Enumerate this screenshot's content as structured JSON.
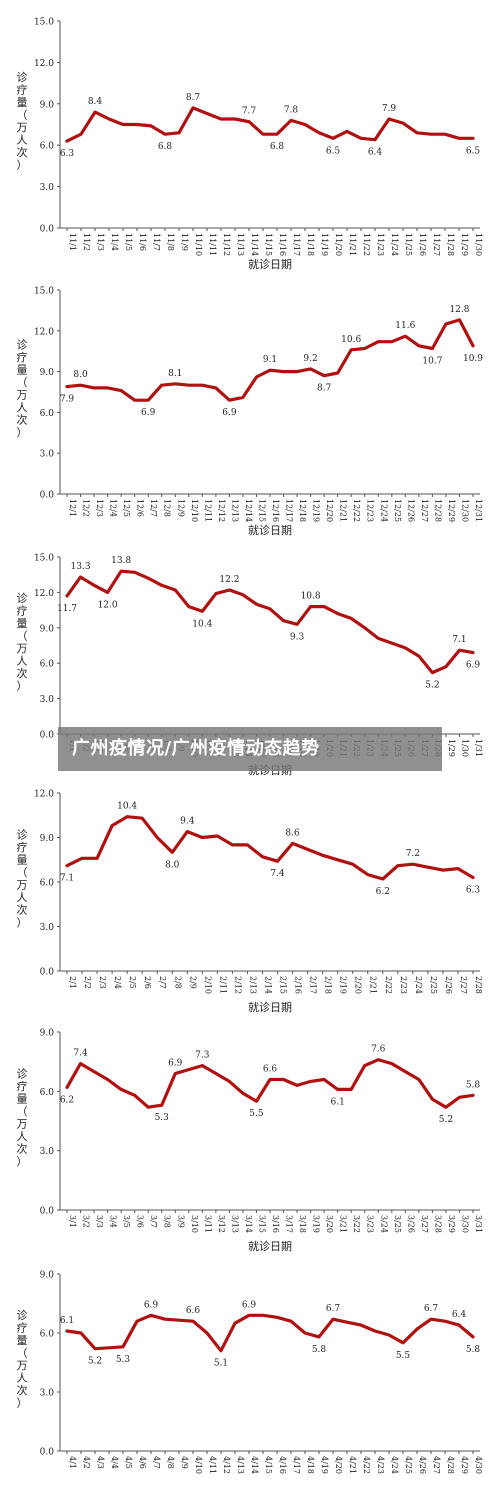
{
  "banner": {
    "title": "广州疫情况/广州疫情动态趋势"
  },
  "chart_data": [
    {
      "type": "line",
      "series_color": "#b01010",
      "xlabel": "就诊日期",
      "ylabel": "诊疗量（万人次）",
      "ylim": [
        0,
        15
      ],
      "yticks": [
        "0.0",
        "3.0",
        "6.0",
        "9.0",
        "12.0",
        "15.0"
      ],
      "categories": [
        "11/1",
        "11/2",
        "11/3",
        "11/4",
        "11/5",
        "11/6",
        "11/7",
        "11/8",
        "11/9",
        "11/10",
        "11/11",
        "11/12",
        "11/13",
        "11/14",
        "11/15",
        "11/16",
        "11/17",
        "11/18",
        "11/19",
        "11/20",
        "11/21",
        "11/22",
        "11/23",
        "11/24",
        "11/25",
        "11/26",
        "11/27",
        "11/28",
        "11/29",
        "11/30"
      ],
      "values": [
        6.3,
        6.8,
        8.4,
        7.9,
        7.5,
        7.5,
        7.4,
        6.8,
        6.9,
        8.7,
        8.3,
        7.9,
        7.9,
        7.7,
        6.8,
        6.8,
        7.8,
        7.5,
        6.9,
        6.5,
        7.0,
        6.5,
        6.4,
        7.9,
        7.6,
        6.9,
        6.8,
        6.8,
        6.5,
        6.5
      ],
      "data_labels": [
        {
          "i": 0,
          "text": "6.3",
          "pos": "below"
        },
        {
          "i": 2,
          "text": "8.4",
          "pos": "above"
        },
        {
          "i": 7,
          "text": "6.8",
          "pos": "below"
        },
        {
          "i": 9,
          "text": "8.7",
          "pos": "above"
        },
        {
          "i": 13,
          "text": "7.7",
          "pos": "above"
        },
        {
          "i": 15,
          "text": "6.8",
          "pos": "below"
        },
        {
          "i": 16,
          "text": "7.8",
          "pos": "above"
        },
        {
          "i": 19,
          "text": "6.5",
          "pos": "below"
        },
        {
          "i": 22,
          "text": "6.4",
          "pos": "below"
        },
        {
          "i": 23,
          "text": "7.9",
          "pos": "above"
        },
        {
          "i": 29,
          "text": "6.5",
          "pos": "below"
        }
      ]
    },
    {
      "type": "line",
      "series_color": "#b01010",
      "xlabel": "就诊日期",
      "ylabel": "诊疗量（万人次）",
      "ylim": [
        0,
        15
      ],
      "yticks": [
        "0.0",
        "3.0",
        "6.0",
        "9.0",
        "12.0",
        "15.0"
      ],
      "categories": [
        "12/1",
        "12/2",
        "12/3",
        "12/4",
        "12/5",
        "12/6",
        "12/7",
        "12/8",
        "12/9",
        "12/10",
        "12/11",
        "12/12",
        "12/13",
        "12/14",
        "12/15",
        "12/16",
        "12/17",
        "12/18",
        "12/19",
        "12/20",
        "12/21",
        "12/22",
        "12/23",
        "12/24",
        "12/25",
        "12/26",
        "12/27",
        "12/28",
        "12/29",
        "12/30",
        "12/31"
      ],
      "values": [
        7.9,
        8.0,
        7.8,
        7.8,
        7.6,
        6.9,
        6.9,
        8.0,
        8.1,
        8.0,
        8.0,
        7.8,
        6.9,
        7.1,
        8.6,
        9.1,
        9.0,
        9.0,
        9.2,
        8.7,
        8.9,
        10.6,
        10.7,
        11.2,
        11.2,
        11.6,
        10.9,
        10.7,
        12.5,
        12.8,
        10.9
      ],
      "data_labels": [
        {
          "i": 0,
          "text": "7.9",
          "pos": "below"
        },
        {
          "i": 1,
          "text": "8.0",
          "pos": "above"
        },
        {
          "i": 6,
          "text": "6.9",
          "pos": "below"
        },
        {
          "i": 8,
          "text": "8.1",
          "pos": "above"
        },
        {
          "i": 12,
          "text": "6.9",
          "pos": "below"
        },
        {
          "i": 15,
          "text": "9.1",
          "pos": "above"
        },
        {
          "i": 18,
          "text": "9.2",
          "pos": "above"
        },
        {
          "i": 19,
          "text": "8.7",
          "pos": "below"
        },
        {
          "i": 21,
          "text": "10.6",
          "pos": "above"
        },
        {
          "i": 25,
          "text": "11.6",
          "pos": "above"
        },
        {
          "i": 27,
          "text": "10.7",
          "pos": "below"
        },
        {
          "i": 29,
          "text": "12.8",
          "pos": "above"
        },
        {
          "i": 30,
          "text": "10.9",
          "pos": "below"
        }
      ]
    },
    {
      "type": "line",
      "series_color": "#b01010",
      "xlabel": "就诊日期",
      "ylabel": "诊疗量（万人次）",
      "ylim": [
        0,
        15
      ],
      "yticks": [
        "0.0",
        "3.0",
        "6.0",
        "9.0",
        "12.0",
        "15.0"
      ],
      "categories": [
        "1/1",
        "1/2",
        "1/3",
        "1/4",
        "1/5",
        "1/6",
        "1/7",
        "1/8",
        "1/9",
        "1/10",
        "1/11",
        "1/12",
        "1/13",
        "1/14",
        "1/15",
        "1/16",
        "1/17",
        "1/18",
        "1/19",
        "1/20",
        "1/21",
        "1/22",
        "1/23",
        "1/24",
        "1/25",
        "1/26",
        "1/27",
        "1/28",
        "1/29",
        "1/30",
        "1/31"
      ],
      "values": [
        11.7,
        13.3,
        12.6,
        12.0,
        13.8,
        13.7,
        13.2,
        12.6,
        12.2,
        10.8,
        10.4,
        11.9,
        12.2,
        11.8,
        11.0,
        10.6,
        9.6,
        9.3,
        10.8,
        10.8,
        10.2,
        9.8,
        9.0,
        8.1,
        7.7,
        7.3,
        6.6,
        5.2,
        5.7,
        7.1,
        6.9
      ],
      "data_labels": [
        {
          "i": 0,
          "text": "11.7",
          "pos": "below"
        },
        {
          "i": 1,
          "text": "13.3",
          "pos": "above"
        },
        {
          "i": 3,
          "text": "12.0",
          "pos": "below"
        },
        {
          "i": 4,
          "text": "13.8",
          "pos": "above"
        },
        {
          "i": 10,
          "text": "10.4",
          "pos": "below"
        },
        {
          "i": 12,
          "text": "12.2",
          "pos": "above"
        },
        {
          "i": 17,
          "text": "9.3",
          "pos": "below"
        },
        {
          "i": 18,
          "text": "10.8",
          "pos": "above"
        },
        {
          "i": 27,
          "text": "5.2",
          "pos": "below"
        },
        {
          "i": 29,
          "text": "7.1",
          "pos": "above"
        },
        {
          "i": 30,
          "text": "6.9",
          "pos": "below"
        }
      ]
    },
    {
      "type": "line",
      "series_color": "#b01010",
      "xlabel": "就诊日期",
      "ylabel": "诊疗量（万人次）",
      "ylim": [
        0,
        12
      ],
      "yticks": [
        "0.0",
        "3.0",
        "6.0",
        "9.0",
        "12.0"
      ],
      "categories": [
        "2/1",
        "2/2",
        "2/3",
        "2/4",
        "2/5",
        "2/6",
        "2/7",
        "2/8",
        "2/9",
        "2/10",
        "2/11",
        "2/12",
        "2/13",
        "2/14",
        "2/15",
        "2/16",
        "2/17",
        "2/18",
        "2/19",
        "2/20",
        "2/21",
        "2/22",
        "2/23",
        "2/24",
        "2/25",
        "2/26",
        "2/27",
        "2/28"
      ],
      "values": [
        7.1,
        7.6,
        7.6,
        9.8,
        10.4,
        10.3,
        9.0,
        8.0,
        9.4,
        9.0,
        9.1,
        8.5,
        8.5,
        7.7,
        7.4,
        8.6,
        8.2,
        7.8,
        7.5,
        7.2,
        6.5,
        6.2,
        7.1,
        7.2,
        7.0,
        6.8,
        6.9,
        6.3
      ],
      "data_labels": [
        {
          "i": 0,
          "text": "7.1",
          "pos": "below"
        },
        {
          "i": 4,
          "text": "10.4",
          "pos": "above"
        },
        {
          "i": 7,
          "text": "8.0",
          "pos": "below"
        },
        {
          "i": 8,
          "text": "9.4",
          "pos": "above"
        },
        {
          "i": 14,
          "text": "7.4",
          "pos": "below"
        },
        {
          "i": 15,
          "text": "8.6",
          "pos": "above"
        },
        {
          "i": 21,
          "text": "6.2",
          "pos": "below"
        },
        {
          "i": 23,
          "text": "7.2",
          "pos": "above"
        },
        {
          "i": 27,
          "text": "6.3",
          "pos": "below"
        }
      ]
    },
    {
      "type": "line",
      "series_color": "#b01010",
      "xlabel": "就诊日期",
      "ylabel": "诊疗量（万人次）",
      "ylim": [
        0,
        9
      ],
      "yticks": [
        "0.0",
        "3.0",
        "6.0",
        "9.0"
      ],
      "categories": [
        "3/1",
        "3/2",
        "3/3",
        "3/4",
        "3/5",
        "3/6",
        "3/7",
        "3/8",
        "3/9",
        "3/10",
        "3/11",
        "3/12",
        "3/13",
        "3/14",
        "3/15",
        "3/16",
        "3/17",
        "3/18",
        "3/19",
        "3/20",
        "3/21",
        "3/22",
        "3/23",
        "3/24",
        "3/25",
        "3/26",
        "3/27",
        "3/28",
        "3/29",
        "3/30",
        "3/31"
      ],
      "values": [
        6.2,
        7.4,
        7.0,
        6.6,
        6.1,
        5.8,
        5.2,
        5.3,
        6.9,
        7.1,
        7.3,
        6.9,
        6.5,
        5.9,
        5.5,
        6.6,
        6.6,
        6.3,
        6.5,
        6.6,
        6.1,
        6.1,
        7.3,
        7.6,
        7.4,
        7.0,
        6.6,
        5.6,
        5.2,
        5.7,
        5.8
      ],
      "data_labels": [
        {
          "i": 0,
          "text": "6.2",
          "pos": "below"
        },
        {
          "i": 1,
          "text": "7.4",
          "pos": "above"
        },
        {
          "i": 7,
          "text": "5.3",
          "pos": "below"
        },
        {
          "i": 8,
          "text": "6.9",
          "pos": "above"
        },
        {
          "i": 10,
          "text": "7.3",
          "pos": "above"
        },
        {
          "i": 14,
          "text": "5.5",
          "pos": "below"
        },
        {
          "i": 15,
          "text": "6.6",
          "pos": "above"
        },
        {
          "i": 20,
          "text": "6.1",
          "pos": "below"
        },
        {
          "i": 23,
          "text": "7.6",
          "pos": "above"
        },
        {
          "i": 28,
          "text": "5.2",
          "pos": "below"
        },
        {
          "i": 30,
          "text": "5.8",
          "pos": "above"
        }
      ]
    },
    {
      "type": "line",
      "series_color": "#b01010",
      "xlabel": "",
      "ylabel": "诊疗量（万人次）",
      "ylim": [
        0,
        9
      ],
      "yticks": [
        "0.0",
        "3.0",
        "6.0",
        "9.0"
      ],
      "categories": [
        "4/1",
        "4/2",
        "4/3",
        "4/4",
        "4/5",
        "4/6",
        "4/7",
        "4/8",
        "4/9",
        "4/10",
        "4/11",
        "4/12",
        "4/13",
        "4/14",
        "4/15",
        "4/16",
        "4/17",
        "4/18",
        "4/19",
        "4/20",
        "4/21",
        "4/22",
        "4/23",
        "4/24",
        "4/25",
        "4/26",
        "4/27",
        "4/28",
        "4/29",
        "4/30"
      ],
      "values": [
        6.1,
        6.0,
        5.2,
        5.25,
        5.3,
        6.6,
        6.9,
        6.7,
        6.65,
        6.6,
        6.0,
        5.1,
        6.5,
        6.9,
        6.9,
        6.8,
        6.6,
        6.0,
        5.8,
        6.7,
        6.55,
        6.4,
        6.1,
        5.9,
        5.5,
        6.2,
        6.7,
        6.6,
        6.4,
        5.8
      ],
      "data_labels": [
        {
          "i": 0,
          "text": "6.1",
          "pos": "above"
        },
        {
          "i": 2,
          "text": "5.2",
          "pos": "below"
        },
        {
          "i": 4,
          "text": "5.3",
          "pos": "below"
        },
        {
          "i": 6,
          "text": "6.9",
          "pos": "above"
        },
        {
          "i": 9,
          "text": "6.6",
          "pos": "above"
        },
        {
          "i": 11,
          "text": "5.1",
          "pos": "below"
        },
        {
          "i": 13,
          "text": "6.9",
          "pos": "above"
        },
        {
          "i": 18,
          "text": "5.8",
          "pos": "below"
        },
        {
          "i": 19,
          "text": "6.7",
          "pos": "above"
        },
        {
          "i": 24,
          "text": "5.5",
          "pos": "below"
        },
        {
          "i": 26,
          "text": "6.7",
          "pos": "above"
        },
        {
          "i": 28,
          "text": "6.4",
          "pos": "above"
        },
        {
          "i": 29,
          "text": "5.8",
          "pos": "below"
        }
      ]
    }
  ]
}
